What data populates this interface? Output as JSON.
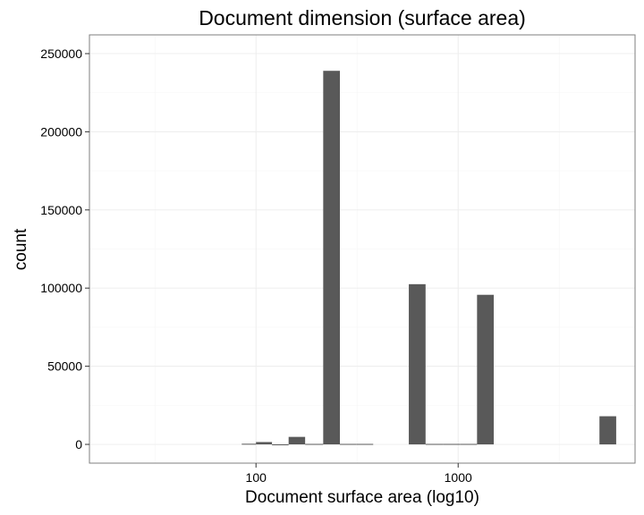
{
  "chart_data": {
    "type": "bar",
    "title": "Document dimension (surface area)",
    "xlabel": "Document surface area (log10)",
    "ylabel": "count",
    "x_scale": "log10",
    "xlim": [
      15,
      7500
    ],
    "ylim": [
      -12000,
      262000
    ],
    "grid": true,
    "legend": "none",
    "bar_color": "#595959",
    "x_ticks": [
      {
        "value": 100,
        "label": "100"
      },
      {
        "value": 1000,
        "label": "1000"
      }
    ],
    "y_ticks": [
      {
        "value": 0,
        "label": "0"
      },
      {
        "value": 50000,
        "label": "50000"
      },
      {
        "value": 100000,
        "label": "100000"
      },
      {
        "value": 150000,
        "label": "150000"
      },
      {
        "value": 200000,
        "label": "200000"
      },
      {
        "value": 250000,
        "label": "250000"
      }
    ],
    "bins": [
      {
        "x0": 85,
        "x1": 100,
        "count": 400
      },
      {
        "x0": 100,
        "x1": 120,
        "count": 1500
      },
      {
        "x0": 120,
        "x1": 145,
        "count": 0
      },
      {
        "x0": 145,
        "x1": 175,
        "count": 4800
      },
      {
        "x0": 175,
        "x1": 215,
        "count": 300
      },
      {
        "x0": 215,
        "x1": 260,
        "count": 239000
      },
      {
        "x0": 260,
        "x1": 315,
        "count": 300
      },
      {
        "x0": 315,
        "x1": 380,
        "count": 300
      },
      {
        "x0": 570,
        "x1": 690,
        "count": 102500
      },
      {
        "x0": 690,
        "x1": 840,
        "count": 300
      },
      {
        "x0": 840,
        "x1": 1020,
        "count": 300
      },
      {
        "x0": 1020,
        "x1": 1240,
        "count": 300
      },
      {
        "x0": 1240,
        "x1": 1500,
        "count": 95700
      },
      {
        "x0": 5000,
        "x1": 6050,
        "count": 18000
      }
    ]
  }
}
